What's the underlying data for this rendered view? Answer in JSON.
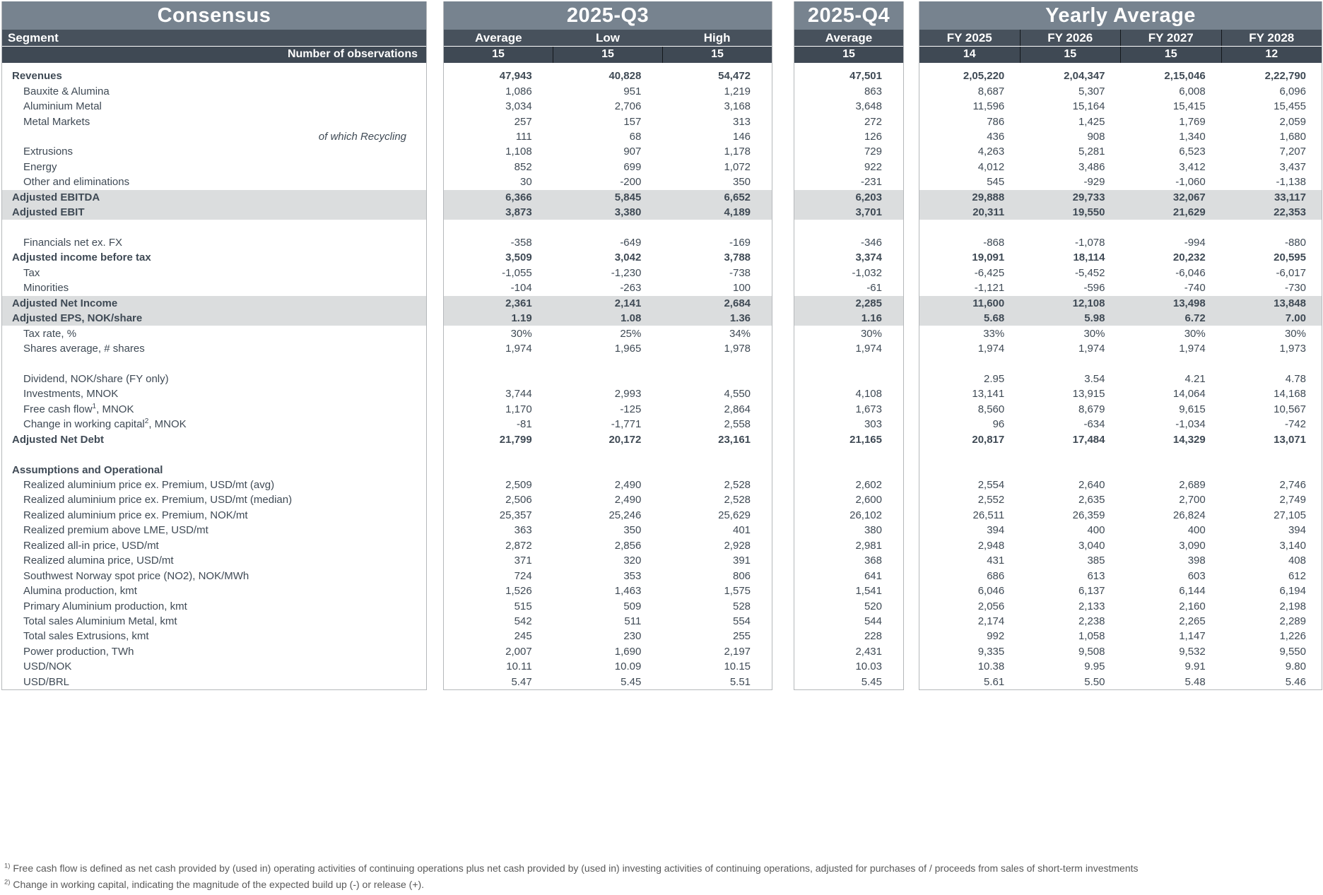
{
  "colors": {
    "title_band": "#77838F",
    "band_upper": "#47515C",
    "band_lower": "#3F4954",
    "highlight_row": "#DBDDDE",
    "text": "#3F4A55",
    "card_border": "#B5B8BB",
    "footnote_text": "#595959"
  },
  "cards": {
    "consensus": {
      "title": "Consensus",
      "segment_label": "Segment",
      "observations_label": "Number of observations"
    },
    "q3": {
      "title": "2025-Q3",
      "columns": [
        "Average",
        "Low",
        "High"
      ],
      "observations": [
        "15",
        "15",
        "15"
      ]
    },
    "q4": {
      "title": "2025-Q4",
      "columns": [
        "Average"
      ],
      "observations": [
        "15"
      ]
    },
    "yearly": {
      "title": "Yearly Average",
      "columns": [
        "FY 2025",
        "FY 2026",
        "FY 2027",
        "FY 2028"
      ],
      "observations": [
        "14",
        "15",
        "15",
        "12"
      ]
    }
  },
  "rows": [
    {
      "label": "Revenues",
      "bold": true,
      "q3": [
        "47,943",
        "40,828",
        "54,472"
      ],
      "q4": [
        "47,501"
      ],
      "fy": [
        "2,05,220",
        "2,04,347",
        "2,15,046",
        "2,22,790"
      ]
    },
    {
      "label": "Bauxite & Alumina",
      "indent": true,
      "q3": [
        "1,086",
        "951",
        "1,219"
      ],
      "q4": [
        "863"
      ],
      "fy": [
        "8,687",
        "5,307",
        "6,008",
        "6,096"
      ]
    },
    {
      "label": "Aluminium Metal",
      "indent": true,
      "q3": [
        "3,034",
        "2,706",
        "3,168"
      ],
      "q4": [
        "3,648"
      ],
      "fy": [
        "11,596",
        "15,164",
        "15,415",
        "15,455"
      ]
    },
    {
      "label": "Metal Markets",
      "indent": true,
      "q3": [
        "257",
        "157",
        "313"
      ],
      "q4": [
        "272"
      ],
      "fy": [
        "786",
        "1,425",
        "1,769",
        "2,059"
      ]
    },
    {
      "label": "of which Recycling",
      "italicRight": true,
      "q3": [
        "111",
        "68",
        "146"
      ],
      "q4": [
        "126"
      ],
      "fy": [
        "436",
        "908",
        "1,340",
        "1,680"
      ]
    },
    {
      "label": "Extrusions",
      "indent": true,
      "q3": [
        "1,108",
        "907",
        "1,178"
      ],
      "q4": [
        "729"
      ],
      "fy": [
        "4,263",
        "5,281",
        "6,523",
        "7,207"
      ]
    },
    {
      "label": "Energy",
      "indent": true,
      "q3": [
        "852",
        "699",
        "1,072"
      ],
      "q4": [
        "922"
      ],
      "fy": [
        "4,012",
        "3,486",
        "3,412",
        "3,437"
      ]
    },
    {
      "label": "Other and eliminations",
      "indent": true,
      "q3": [
        "30",
        "-200",
        "350"
      ],
      "q4": [
        "-231"
      ],
      "fy": [
        "545",
        "-929",
        "-1,060",
        "-1,138"
      ]
    },
    {
      "label": "Adjusted EBITDA",
      "bold": true,
      "highlight": true,
      "q3": [
        "6,366",
        "5,845",
        "6,652"
      ],
      "q4": [
        "6,203"
      ],
      "fy": [
        "29,888",
        "29,733",
        "32,067",
        "33,117"
      ]
    },
    {
      "label": "Adjusted EBIT",
      "bold": true,
      "highlight": true,
      "q3": [
        "3,873",
        "3,380",
        "4,189"
      ],
      "q4": [
        "3,701"
      ],
      "fy": [
        "20,311",
        "19,550",
        "21,629",
        "22,353"
      ]
    },
    {
      "blank": true
    },
    {
      "label": "Financials net ex. FX",
      "indent": true,
      "q3": [
        "-358",
        "-649",
        "-169"
      ],
      "q4": [
        "-346"
      ],
      "fy": [
        "-868",
        "-1,078",
        "-994",
        "-880"
      ]
    },
    {
      "label": "Adjusted income before tax",
      "bold": true,
      "q3": [
        "3,509",
        "3,042",
        "3,788"
      ],
      "q4": [
        "3,374"
      ],
      "fy": [
        "19,091",
        "18,114",
        "20,232",
        "20,595"
      ]
    },
    {
      "label": "Tax",
      "indent": true,
      "q3": [
        "-1,055",
        "-1,230",
        "-738"
      ],
      "q4": [
        "-1,032"
      ],
      "fy": [
        "-6,425",
        "-5,452",
        "-6,046",
        "-6,017"
      ]
    },
    {
      "label": "Minorities",
      "indent": true,
      "q3": [
        "-104",
        "-263",
        "100"
      ],
      "q4": [
        "-61"
      ],
      "fy": [
        "-1,121",
        "-596",
        "-740",
        "-730"
      ]
    },
    {
      "label": "Adjusted Net Income",
      "bold": true,
      "highlight": true,
      "q3": [
        "2,361",
        "2,141",
        "2,684"
      ],
      "q4": [
        "2,285"
      ],
      "fy": [
        "11,600",
        "12,108",
        "13,498",
        "13,848"
      ]
    },
    {
      "label": "Adjusted EPS, NOK/share",
      "bold": true,
      "highlight": true,
      "q3": [
        "1.19",
        "1.08",
        "1.36"
      ],
      "q4": [
        "1.16"
      ],
      "fy": [
        "5.68",
        "5.98",
        "6.72",
        "7.00"
      ]
    },
    {
      "label": "Tax rate, %",
      "indent": true,
      "q3": [
        "30%",
        "25%",
        "34%"
      ],
      "q4": [
        "30%"
      ],
      "fy": [
        "33%",
        "30%",
        "30%",
        "30%"
      ]
    },
    {
      "label": "Shares average, # shares",
      "indent": true,
      "q3": [
        "1,974",
        "1,965",
        "1,978"
      ],
      "q4": [
        "1,974"
      ],
      "fy": [
        "1,974",
        "1,974",
        "1,974",
        "1,973"
      ]
    },
    {
      "blank": true
    },
    {
      "label": "Dividend, NOK/share (FY only)",
      "indent": true,
      "q3": [
        "",
        "",
        ""
      ],
      "q4": [
        ""
      ],
      "fy": [
        "2.95",
        "3.54",
        "4.21",
        "4.78"
      ]
    },
    {
      "label": "Investments, MNOK",
      "indent": true,
      "q3": [
        "3,744",
        "2,993",
        "4,550"
      ],
      "q4": [
        "4,108"
      ],
      "fy": [
        "13,141",
        "13,915",
        "14,064",
        "14,168"
      ]
    },
    {
      "pre": "Free cash flow",
      "sup": "1",
      "post": ", MNOK",
      "indent": true,
      "q3": [
        "1,170",
        "-125",
        "2,864"
      ],
      "q4": [
        "1,673"
      ],
      "fy": [
        "8,560",
        "8,679",
        "9,615",
        "10,567"
      ]
    },
    {
      "pre": "Change in working capital",
      "sup": "2",
      "post": ", MNOK",
      "indent": true,
      "q3": [
        "-81",
        "-1,771",
        "2,558"
      ],
      "q4": [
        "303"
      ],
      "fy": [
        "96",
        "-634",
        "-1,034",
        "-742"
      ]
    },
    {
      "label": "Adjusted Net Debt",
      "bold": true,
      "q3": [
        "21,799",
        "20,172",
        "23,161"
      ],
      "q4": [
        "21,165"
      ],
      "fy": [
        "20,817",
        "17,484",
        "14,329",
        "13,071"
      ]
    },
    {
      "blank": true
    },
    {
      "label": "Assumptions and Operational",
      "bold": true,
      "q3": [
        "",
        "",
        ""
      ],
      "q4": [
        ""
      ],
      "fy": [
        "",
        "",
        "",
        ""
      ]
    },
    {
      "label": "Realized aluminium price ex. Premium, USD/mt (avg)",
      "indent": true,
      "q3": [
        "2,509",
        "2,490",
        "2,528"
      ],
      "q4": [
        "2,602"
      ],
      "fy": [
        "2,554",
        "2,640",
        "2,689",
        "2,746"
      ]
    },
    {
      "label": "Realized aluminium price ex. Premium, USD/mt (median)",
      "indent": true,
      "q3": [
        "2,506",
        "2,490",
        "2,528"
      ],
      "q4": [
        "2,600"
      ],
      "fy": [
        "2,552",
        "2,635",
        "2,700",
        "2,749"
      ]
    },
    {
      "label": "Realized aluminium price ex. Premium, NOK/mt",
      "indent": true,
      "q3": [
        "25,357",
        "25,246",
        "25,629"
      ],
      "q4": [
        "26,102"
      ],
      "fy": [
        "26,511",
        "26,359",
        "26,824",
        "27,105"
      ]
    },
    {
      "label": "Realized premium above LME, USD/mt",
      "indent": true,
      "q3": [
        "363",
        "350",
        "401"
      ],
      "q4": [
        "380"
      ],
      "fy": [
        "394",
        "400",
        "400",
        "394"
      ]
    },
    {
      "label": "Realized all-in price, USD/mt",
      "indent": true,
      "q3": [
        "2,872",
        "2,856",
        "2,928"
      ],
      "q4": [
        "2,981"
      ],
      "fy": [
        "2,948",
        "3,040",
        "3,090",
        "3,140"
      ]
    },
    {
      "label": "Realized alumina price, USD/mt",
      "indent": true,
      "q3": [
        "371",
        "320",
        "391"
      ],
      "q4": [
        "368"
      ],
      "fy": [
        "431",
        "385",
        "398",
        "408"
      ]
    },
    {
      "label": "Southwest Norway spot price (NO2), NOK/MWh",
      "indent": true,
      "q3": [
        "724",
        "353",
        "806"
      ],
      "q4": [
        "641"
      ],
      "fy": [
        "686",
        "613",
        "603",
        "612"
      ]
    },
    {
      "label": "Alumina production, kmt",
      "indent": true,
      "q3": [
        "1,526",
        "1,463",
        "1,575"
      ],
      "q4": [
        "1,541"
      ],
      "fy": [
        "6,046",
        "6,137",
        "6,144",
        "6,194"
      ]
    },
    {
      "label": "Primary Aluminium production, kmt",
      "indent": true,
      "q3": [
        "515",
        "509",
        "528"
      ],
      "q4": [
        "520"
      ],
      "fy": [
        "2,056",
        "2,133",
        "2,160",
        "2,198"
      ]
    },
    {
      "label": "Total sales Aluminium Metal, kmt",
      "indent": true,
      "q3": [
        "542",
        "511",
        "554"
      ],
      "q4": [
        "544"
      ],
      "fy": [
        "2,174",
        "2,238",
        "2,265",
        "2,289"
      ]
    },
    {
      "label": "Total sales Extrusions, kmt",
      "indent": true,
      "q3": [
        "245",
        "230",
        "255"
      ],
      "q4": [
        "228"
      ],
      "fy": [
        "992",
        "1,058",
        "1,147",
        "1,226"
      ]
    },
    {
      "label": "Power production, TWh",
      "indent": true,
      "q3": [
        "2,007",
        "1,690",
        "2,197"
      ],
      "q4": [
        "2,431"
      ],
      "fy": [
        "9,335",
        "9,508",
        "9,532",
        "9,550"
      ]
    },
    {
      "label": "USD/NOK",
      "indent": true,
      "q3": [
        "10.11",
        "10.09",
        "10.15"
      ],
      "q4": [
        "10.03"
      ],
      "fy": [
        "10.38",
        "9.95",
        "9.91",
        "9.80"
      ]
    },
    {
      "label": "USD/BRL",
      "indent": true,
      "q3": [
        "5.47",
        "5.45",
        "5.51"
      ],
      "q4": [
        "5.45"
      ],
      "fy": [
        "5.61",
        "5.50",
        "5.48",
        "5.46"
      ]
    }
  ],
  "footnotes": [
    {
      "marker": "1)",
      "text": "Free cash flow is defined as net cash provided by (used in) operating activities of continuing operations plus net cash provided by (used in) investing activities of continuing operations, adjusted for purchases of / proceeds from sales of short-term investments"
    },
    {
      "marker": "2)",
      "text": "Change in working capital, indicating the magnitude of the expected build up (-) or release (+)."
    }
  ]
}
